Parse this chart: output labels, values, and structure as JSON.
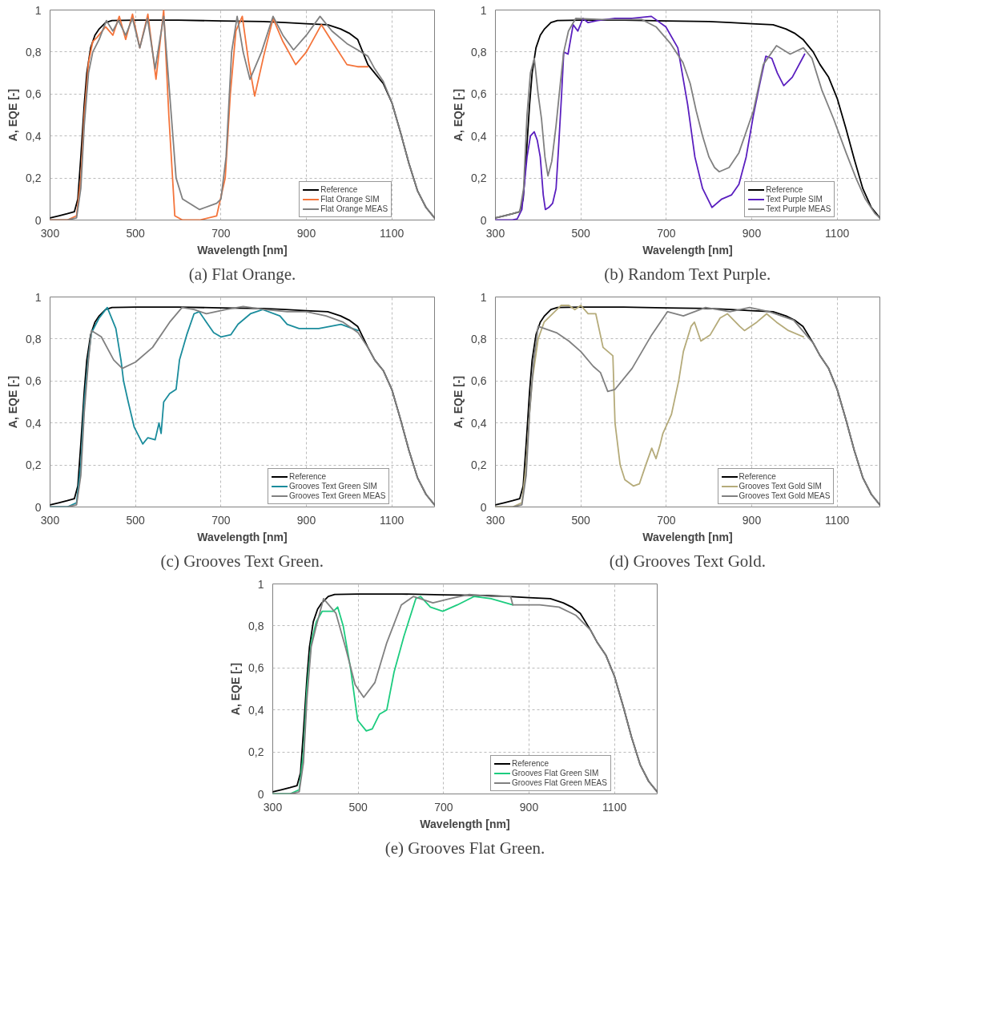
{
  "chart_data": [
    {
      "type": "line",
      "title": "(a) Flat Orange.",
      "xlabel": "Wavelength [nm]",
      "ylabel": "A, EQE [-]",
      "xlim": [
        300,
        1200
      ],
      "ylim": [
        0,
        1
      ],
      "xticks": [
        300,
        500,
        700,
        900,
        1100
      ],
      "yticks": [
        0,
        {
          "value": 0.2,
          "label": "0,2"
        },
        {
          "value": 0.4,
          "label": "0,4"
        },
        {
          "value": 0.6,
          "label": "0,6"
        },
        {
          "value": 0.8,
          "label": "0,8"
        },
        1
      ],
      "grid": true,
      "legend": "bottom right",
      "line_style": "solid",
      "series": [
        {
          "name": "Reference",
          "color": "#000000",
          "x": [
            300,
            320,
            340,
            357,
            365,
            372,
            380,
            386,
            395,
            405,
            415,
            430,
            445,
            500,
            600,
            700,
            800,
            850,
            900,
            950,
            980,
            1000,
            1020,
            1044,
            1060,
            1080,
            1100,
            1120,
            1140,
            1160,
            1180,
            1200
          ],
          "values": [
            0.01,
            0.02,
            0.03,
            0.04,
            0.1,
            0.3,
            0.55,
            0.7,
            0.82,
            0.88,
            0.91,
            0.94,
            0.95,
            0.952,
            0.952,
            0.948,
            0.945,
            0.94,
            0.935,
            0.93,
            0.91,
            0.89,
            0.86,
            0.74,
            0.7,
            0.65,
            0.56,
            0.42,
            0.27,
            0.14,
            0.06,
            0.01
          ]
        },
        {
          "name": "Flat Orange SIM",
          "color": "#f4743b",
          "x": [
            300,
            340,
            362,
            372,
            380,
            390,
            400,
            410,
            430,
            447,
            462,
            477,
            493,
            510,
            529,
            548,
            566,
            578,
            592,
            610,
            650,
            690,
            710,
            722,
            735,
            750,
            765,
            779,
            800,
            822,
            845,
            875,
            900,
            935,
            960,
            995,
            1020,
            1044
          ],
          "values": [
            0,
            0,
            0.02,
            0.2,
            0.5,
            0.75,
            0.85,
            0.87,
            0.92,
            0.88,
            0.97,
            0.86,
            0.98,
            0.82,
            0.98,
            0.67,
            1.0,
            0.5,
            0.02,
            0.0,
            0.0,
            0.02,
            0.2,
            0.6,
            0.9,
            0.97,
            0.75,
            0.59,
            0.78,
            0.96,
            0.85,
            0.74,
            0.8,
            0.93,
            0.85,
            0.74,
            0.73,
            0.73
          ]
        },
        {
          "name": "Flat Orange MEAS",
          "color": "#808080",
          "x": [
            300,
            340,
            362,
            372,
            380,
            390,
            400,
            415,
            432,
            447,
            460,
            477,
            493,
            510,
            528,
            546,
            566,
            580,
            595,
            610,
            650,
            690,
            700,
            712,
            725,
            738,
            752,
            768,
            795,
            822,
            845,
            870,
            900,
            932,
            960,
            995,
            1020,
            1044,
            1060,
            1080,
            1100,
            1120,
            1140,
            1160,
            1180,
            1200
          ],
          "values": [
            0,
            0,
            0.01,
            0.15,
            0.45,
            0.7,
            0.8,
            0.86,
            0.95,
            0.9,
            0.95,
            0.88,
            0.96,
            0.82,
            0.96,
            0.72,
            0.97,
            0.6,
            0.2,
            0.1,
            0.05,
            0.08,
            0.1,
            0.3,
            0.8,
            0.97,
            0.8,
            0.67,
            0.8,
            0.97,
            0.88,
            0.81,
            0.88,
            0.97,
            0.9,
            0.84,
            0.81,
            0.78,
            0.72,
            0.66,
            0.56,
            0.42,
            0.27,
            0.14,
            0.06,
            0.01
          ]
        }
      ]
    },
    {
      "type": "line",
      "title": "(b) Random Text Purple.",
      "xlabel": "Wavelength [nm]",
      "ylabel": "A, EQE [-]",
      "xlim": [
        300,
        1200
      ],
      "ylim": [
        0,
        1
      ],
      "xticks": [
        300,
        500,
        700,
        900,
        1100
      ],
      "yticks": [
        0,
        {
          "value": 0.2,
          "label": "0,2"
        },
        {
          "value": 0.4,
          "label": "0,4"
        },
        {
          "value": 0.6,
          "label": "0,6"
        },
        {
          "value": 0.8,
          "label": "0,8"
        },
        1
      ],
      "grid": true,
      "legend": "bottom right",
      "line_style": "solid",
      "series": [
        {
          "name": "Reference",
          "color": "#000000",
          "x": [
            300,
            320,
            340,
            357,
            365,
            372,
            380,
            386,
            395,
            405,
            415,
            430,
            445,
            500,
            600,
            700,
            800,
            850,
            900,
            950,
            980,
            1000,
            1020,
            1044,
            1060,
            1080,
            1100,
            1120,
            1140,
            1160,
            1180,
            1200
          ],
          "values": [
            0.01,
            0.02,
            0.03,
            0.04,
            0.1,
            0.3,
            0.55,
            0.7,
            0.82,
            0.88,
            0.91,
            0.94,
            0.95,
            0.952,
            0.952,
            0.948,
            0.945,
            0.94,
            0.935,
            0.93,
            0.91,
            0.89,
            0.86,
            0.8,
            0.74,
            0.68,
            0.58,
            0.44,
            0.29,
            0.15,
            0.06,
            0.01
          ]
        },
        {
          "name": "Text Purple SIM",
          "color": "#5a1fbf",
          "x": [
            300,
            340,
            351,
            362,
            374,
            382,
            391,
            398,
            405,
            412,
            417,
            425,
            434,
            442,
            448,
            455,
            460,
            470,
            482,
            493,
            505,
            517,
            539,
            580,
            620,
            665,
            699,
            727,
            750,
            767,
            785,
            807,
            830,
            853,
            870,
            887,
            904,
            918,
            933,
            947,
            960,
            975,
            995,
            1024
          ],
          "values": [
            0,
            0,
            0.005,
            0.05,
            0.3,
            0.4,
            0.42,
            0.38,
            0.3,
            0.12,
            0.05,
            0.06,
            0.08,
            0.15,
            0.35,
            0.6,
            0.8,
            0.79,
            0.93,
            0.9,
            0.96,
            0.94,
            0.95,
            0.96,
            0.96,
            0.97,
            0.92,
            0.82,
            0.55,
            0.3,
            0.15,
            0.06,
            0.1,
            0.12,
            0.17,
            0.3,
            0.5,
            0.64,
            0.78,
            0.77,
            0.7,
            0.64,
            0.68,
            0.79
          ]
        },
        {
          "name": "Text Purple MEAS",
          "color": "#808080",
          "x": [
            300,
            340,
            357,
            366,
            374,
            382,
            391,
            400,
            408,
            416,
            423,
            432,
            442,
            452,
            460,
            471,
            488,
            550,
            642,
            676,
            710,
            739,
            756,
            770,
            785,
            800,
            813,
            824,
            847,
            870,
            904,
            927,
            958,
            990,
            1021,
            1041,
            1064,
            1092,
            1121,
            1144,
            1166,
            1189,
            1200
          ],
          "values": [
            0.01,
            0.03,
            0.04,
            0.15,
            0.5,
            0.7,
            0.77,
            0.6,
            0.48,
            0.3,
            0.21,
            0.28,
            0.45,
            0.65,
            0.8,
            0.9,
            0.96,
            0.955,
            0.955,
            0.92,
            0.84,
            0.75,
            0.65,
            0.52,
            0.4,
            0.3,
            0.25,
            0.23,
            0.25,
            0.32,
            0.52,
            0.74,
            0.83,
            0.79,
            0.82,
            0.77,
            0.62,
            0.48,
            0.32,
            0.2,
            0.1,
            0.03,
            0.01
          ]
        }
      ]
    },
    {
      "type": "line",
      "title": "(c) Grooves Text Green.",
      "xlabel": "Wavelength [nm]",
      "ylabel": "A, EQE [-]",
      "xlim": [
        300,
        1200
      ],
      "ylim": [
        0,
        1
      ],
      "xticks": [
        300,
        500,
        700,
        900,
        1100
      ],
      "yticks": [
        0,
        {
          "value": 0.2,
          "label": "0,2"
        },
        {
          "value": 0.4,
          "label": "0,4"
        },
        {
          "value": 0.6,
          "label": "0,6"
        },
        {
          "value": 0.8,
          "label": "0,8"
        },
        1
      ],
      "grid": true,
      "legend": "bottom right",
      "line_style": "solid",
      "series": [
        {
          "name": "Reference",
          "color": "#000000",
          "x": [
            300,
            320,
            340,
            357,
            365,
            372,
            380,
            386,
            395,
            405,
            415,
            430,
            445,
            500,
            600,
            700,
            800,
            850,
            900,
            950,
            980,
            1000,
            1020,
            1044,
            1060,
            1080,
            1100,
            1120,
            1140,
            1160,
            1180,
            1200
          ],
          "values": [
            0.01,
            0.02,
            0.03,
            0.04,
            0.1,
            0.3,
            0.55,
            0.7,
            0.82,
            0.88,
            0.91,
            0.94,
            0.95,
            0.952,
            0.952,
            0.948,
            0.945,
            0.94,
            0.935,
            0.93,
            0.91,
            0.89,
            0.86,
            0.76,
            0.7,
            0.65,
            0.56,
            0.42,
            0.27,
            0.14,
            0.06,
            0.01
          ]
        },
        {
          "name": "Grooves Text Green SIM",
          "color": "#1a8c9c",
          "x": [
            300,
            340,
            362,
            372,
            380,
            390,
            397,
            415,
            434,
            454,
            466,
            472,
            483,
            497,
            517,
            529,
            546,
            555,
            560,
            566,
            580,
            595,
            603,
            620,
            637,
            649,
            666,
            683,
            700,
            723,
            740,
            769,
            798,
            838,
            855,
            883,
            929,
            981,
            1021
          ],
          "values": [
            0,
            0,
            0.02,
            0.2,
            0.5,
            0.72,
            0.83,
            0.9,
            0.95,
            0.85,
            0.7,
            0.6,
            0.5,
            0.38,
            0.3,
            0.33,
            0.32,
            0.4,
            0.35,
            0.5,
            0.54,
            0.56,
            0.7,
            0.82,
            0.92,
            0.93,
            0.88,
            0.83,
            0.81,
            0.82,
            0.87,
            0.92,
            0.94,
            0.91,
            0.87,
            0.85,
            0.85,
            0.87,
            0.84
          ]
        },
        {
          "name": "Grooves Text Green MEAS",
          "color": "#808080",
          "x": [
            300,
            340,
            362,
            372,
            380,
            390,
            397,
            420,
            449,
            469,
            500,
            540,
            580,
            609,
            637,
            666,
            712,
            752,
            803,
            855,
            900,
            946,
            986,
            1021,
            1044,
            1060,
            1080,
            1100,
            1120,
            1140,
            1160,
            1180,
            1200
          ],
          "values": [
            0,
            0,
            0.01,
            0.15,
            0.45,
            0.7,
            0.84,
            0.81,
            0.7,
            0.66,
            0.69,
            0.76,
            0.88,
            0.95,
            0.94,
            0.92,
            0.94,
            0.955,
            0.94,
            0.93,
            0.93,
            0.91,
            0.88,
            0.83,
            0.76,
            0.7,
            0.65,
            0.56,
            0.42,
            0.27,
            0.14,
            0.06,
            0.01
          ]
        }
      ]
    },
    {
      "type": "line",
      "title": "(d) Grooves Text Gold.",
      "xlabel": "Wavelength [nm]",
      "ylabel": "A, EQE [-]",
      "xlim": [
        300,
        1200
      ],
      "ylim": [
        0,
        1
      ],
      "xticks": [
        300,
        500,
        700,
        900,
        1100
      ],
      "yticks": [
        0,
        {
          "value": 0.2,
          "label": "0,2"
        },
        {
          "value": 0.4,
          "label": "0,4"
        },
        {
          "value": 0.6,
          "label": "0,6"
        },
        {
          "value": 0.8,
          "label": "0,8"
        },
        1
      ],
      "grid": true,
      "legend": "bottom right",
      "line_style": "solid",
      "series": [
        {
          "name": "Reference",
          "color": "#000000",
          "x": [
            300,
            320,
            340,
            357,
            365,
            372,
            380,
            386,
            395,
            405,
            415,
            430,
            445,
            500,
            600,
            700,
            800,
            850,
            900,
            950,
            980,
            1000,
            1020,
            1044,
            1060,
            1080,
            1100,
            1120,
            1140,
            1160,
            1180,
            1200
          ],
          "values": [
            0.01,
            0.02,
            0.03,
            0.04,
            0.1,
            0.3,
            0.55,
            0.7,
            0.82,
            0.88,
            0.91,
            0.94,
            0.95,
            0.952,
            0.952,
            0.948,
            0.945,
            0.94,
            0.935,
            0.93,
            0.91,
            0.89,
            0.86,
            0.78,
            0.72,
            0.66,
            0.56,
            0.42,
            0.27,
            0.14,
            0.06,
            0.01
          ]
        },
        {
          "name": "Grooves Text Gold SIM",
          "color": "#b5ab7a",
          "x": [
            300,
            340,
            362,
            372,
            380,
            386,
            400,
            414,
            454,
            472,
            486,
            500,
            517,
            535,
            552,
            575,
            580,
            592,
            603,
            623,
            637,
            652,
            666,
            676,
            686,
            692,
            712,
            729,
            740,
            758,
            766,
            781,
            803,
            826,
            843,
            872,
            883,
            912,
            935,
            958,
            986,
            1021
          ],
          "values": [
            0,
            0,
            0.02,
            0.2,
            0.45,
            0.6,
            0.8,
            0.88,
            0.96,
            0.96,
            0.94,
            0.96,
            0.92,
            0.92,
            0.76,
            0.72,
            0.4,
            0.2,
            0.13,
            0.1,
            0.11,
            0.2,
            0.28,
            0.23,
            0.3,
            0.35,
            0.44,
            0.6,
            0.74,
            0.86,
            0.88,
            0.79,
            0.82,
            0.9,
            0.92,
            0.86,
            0.84,
            0.88,
            0.92,
            0.88,
            0.84,
            0.81
          ]
        },
        {
          "name": "Grooves Text Gold MEAS",
          "color": "#808080",
          "x": [
            300,
            340,
            362,
            372,
            380,
            390,
            400,
            443,
            472,
            500,
            529,
            546,
            563,
            580,
            620,
            666,
            703,
            740,
            792,
            849,
            895,
            941,
            998,
            1044,
            1060,
            1080,
            1100,
            1120,
            1140,
            1160,
            1180,
            1200
          ],
          "values": [
            0,
            0,
            0.01,
            0.15,
            0.45,
            0.7,
            0.86,
            0.83,
            0.79,
            0.74,
            0.67,
            0.64,
            0.55,
            0.56,
            0.66,
            0.82,
            0.93,
            0.91,
            0.95,
            0.93,
            0.95,
            0.93,
            0.89,
            0.78,
            0.72,
            0.66,
            0.56,
            0.42,
            0.27,
            0.14,
            0.06,
            0.01
          ]
        }
      ]
    },
    {
      "type": "line",
      "title": "(e) Grooves Flat Green.",
      "xlabel": "Wavelength [nm]",
      "ylabel": "A, EQE [-]",
      "xlim": [
        300,
        1200
      ],
      "ylim": [
        0,
        1
      ],
      "xticks": [
        300,
        500,
        700,
        900,
        1100
      ],
      "yticks": [
        0,
        {
          "value": 0.2,
          "label": "0,2"
        },
        {
          "value": 0.4,
          "label": "0,4"
        },
        {
          "value": 0.6,
          "label": "0,6"
        },
        {
          "value": 0.8,
          "label": "0,8"
        },
        1
      ],
      "grid": true,
      "legend": "bottom right",
      "line_style": "solid",
      "series": [
        {
          "name": "Reference",
          "color": "#000000",
          "x": [
            300,
            320,
            340,
            357,
            365,
            372,
            380,
            386,
            395,
            405,
            415,
            430,
            445,
            500,
            600,
            700,
            800,
            850,
            900,
            950,
            980,
            1000,
            1020,
            1044,
            1060,
            1080,
            1100,
            1120,
            1140,
            1160,
            1180,
            1200
          ],
          "values": [
            0.01,
            0.02,
            0.03,
            0.04,
            0.1,
            0.3,
            0.55,
            0.7,
            0.82,
            0.88,
            0.91,
            0.94,
            0.95,
            0.952,
            0.952,
            0.948,
            0.945,
            0.94,
            0.935,
            0.93,
            0.91,
            0.89,
            0.86,
            0.78,
            0.72,
            0.66,
            0.56,
            0.42,
            0.27,
            0.14,
            0.06,
            0.01
          ]
        },
        {
          "name": "Grooves Flat Green SIM",
          "color": "#1ccc7f",
          "x": [
            300,
            340,
            362,
            372,
            380,
            390,
            402,
            416,
            442,
            452,
            465,
            482,
            499,
            519,
            533,
            550,
            567,
            584,
            607,
            635,
            646,
            669,
            698,
            732,
            771,
            811,
            862
          ],
          "values": [
            0,
            0,
            0.02,
            0.2,
            0.5,
            0.72,
            0.82,
            0.87,
            0.87,
            0.89,
            0.8,
            0.6,
            0.35,
            0.3,
            0.31,
            0.38,
            0.4,
            0.58,
            0.75,
            0.93,
            0.94,
            0.89,
            0.87,
            0.9,
            0.94,
            0.93,
            0.9
          ]
        },
        {
          "name": "Grooves Flat Green MEAS",
          "color": "#808080",
          "x": [
            300,
            340,
            362,
            372,
            380,
            390,
            402,
            419,
            448,
            470,
            493,
            513,
            539,
            567,
            601,
            629,
            675,
            715,
            760,
            811,
            857,
            862,
            925,
            970,
            1010,
            1044,
            1060,
            1080,
            1100,
            1120,
            1140,
            1160,
            1180,
            1200
          ],
          "values": [
            0,
            0,
            0.01,
            0.15,
            0.45,
            0.7,
            0.8,
            0.93,
            0.86,
            0.7,
            0.52,
            0.46,
            0.53,
            0.72,
            0.9,
            0.94,
            0.91,
            0.93,
            0.95,
            0.94,
            0.94,
            0.9,
            0.9,
            0.89,
            0.85,
            0.78,
            0.72,
            0.66,
            0.56,
            0.42,
            0.27,
            0.14,
            0.06,
            0.01
          ]
        }
      ]
    }
  ]
}
